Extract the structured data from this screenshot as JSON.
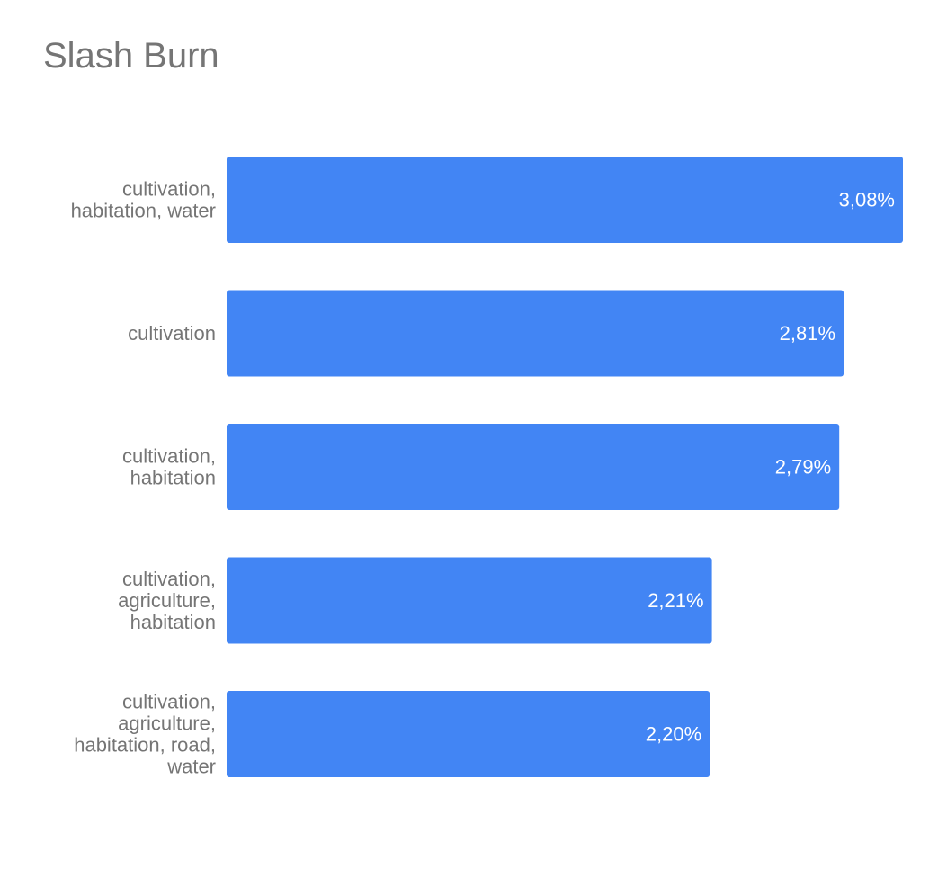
{
  "chart_data": {
    "type": "bar",
    "orientation": "horizontal",
    "title": "Slash Burn",
    "categories": [
      [
        "cultivation,",
        "habitation, water"
      ],
      [
        "cultivation"
      ],
      [
        "cultivation,",
        "habitation"
      ],
      [
        "cultivation,",
        "agriculture,",
        "habitation"
      ],
      [
        "cultivation,",
        "agriculture,",
        "habitation, road,",
        "water"
      ]
    ],
    "values": [
      3.08,
      2.81,
      2.79,
      2.21,
      2.2
    ],
    "value_labels": [
      "3,08%",
      "2,81%",
      "2,79%",
      "2,21%",
      "2,20%"
    ],
    "unit": "%",
    "xlim": [
      0,
      3.08
    ],
    "grid": false,
    "legend": "none",
    "colors": {
      "bar": "#4285f4",
      "label": "#757575",
      "value_label": "#ffffff",
      "title": "#757575"
    }
  }
}
